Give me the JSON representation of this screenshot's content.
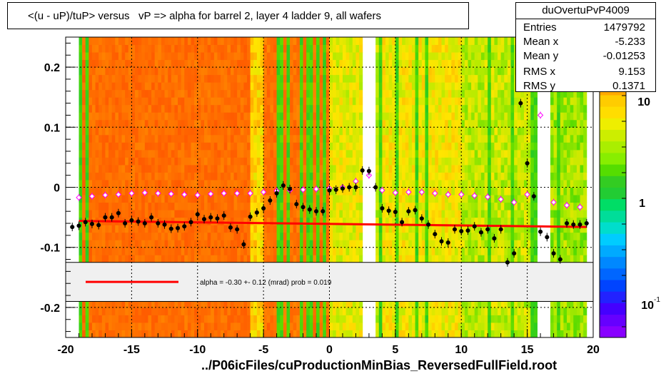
{
  "title": "<(u - uP)/tuP> versus   vP => alpha for barrel 2, layer 4 ladder 9, all wafers",
  "xlabel": "../P06icFiles/cuProductionMinBias_ReversedFullField.root",
  "stats": {
    "name": "duOvertuPvP4009",
    "rows": [
      {
        "k": "Entries",
        "v": "1479792"
      },
      {
        "k": "Mean x",
        "v": "-5.233"
      },
      {
        "k": "Mean y",
        "v": "-0.01253"
      },
      {
        "k": "RMS x",
        "v": "9.153"
      },
      {
        "k": "RMS y",
        "v": "0.1371"
      }
    ]
  },
  "fit_label": "alpha =   -0.30 +-  0.12 (mrad) prob = 0.019",
  "palette_labels": [
    "10",
    "1",
    "10"
  ],
  "palette_exponent": "-1",
  "colors": {
    "profile": "#000000",
    "mean_markers": "#ff00ff",
    "fit_line": "#ff0000"
  },
  "chart_data": {
    "type": "heatmap",
    "xlim": [
      -20,
      20
    ],
    "ylim": [
      -0.25,
      0.25
    ],
    "xticks": [
      -20,
      -15,
      -10,
      -5,
      0,
      5,
      10,
      15,
      20
    ],
    "yticks": [
      0.2,
      0.1,
      0,
      -0.1,
      -0.2
    ],
    "ytick_labels": [
      "0.2",
      "0.1",
      "0",
      "-0.1",
      "-0.2"
    ],
    "grid": true,
    "fit_line": {
      "x": [
        -19,
        19.5
      ],
      "y": [
        -0.056,
        -0.066
      ]
    },
    "profile_points": {
      "x": [
        -19.5,
        -19,
        -18.5,
        -18,
        -17.5,
        -17,
        -16.5,
        -16,
        -15.5,
        -15,
        -14.5,
        -14,
        -13.5,
        -13,
        -12.5,
        -12,
        -11.5,
        -11,
        -10.5,
        -10,
        -9.5,
        -9,
        -8.5,
        -8,
        -7.5,
        -7,
        -6.5,
        -6,
        -5.5,
        -5,
        -4.5,
        -4,
        -3.5,
        -3,
        -2.5,
        -2,
        -1.5,
        -1,
        -0.5,
        0,
        0.5,
        1,
        1.5,
        2,
        2.5,
        3,
        3.5,
        4,
        4.5,
        5,
        5.5,
        6,
        6.5,
        7,
        7.5,
        8,
        8.5,
        9,
        9.5,
        10,
        10.5,
        11,
        11.5,
        12,
        12.5,
        13,
        13.5,
        14,
        14.5,
        15,
        15.5,
        16,
        16.5,
        17,
        17.5,
        18,
        18.5,
        19,
        19.5
      ],
      "y": [
        -0.066,
        -0.064,
        -0.058,
        -0.061,
        -0.063,
        -0.05,
        -0.05,
        -0.043,
        -0.06,
        -0.055,
        -0.057,
        -0.06,
        -0.05,
        -0.06,
        -0.062,
        -0.069,
        -0.068,
        -0.065,
        -0.058,
        -0.045,
        -0.053,
        -0.05,
        -0.052,
        -0.047,
        -0.067,
        -0.07,
        -0.095,
        -0.049,
        -0.042,
        -0.035,
        -0.022,
        -0.01,
        0.003,
        -0.003,
        -0.028,
        -0.033,
        -0.037,
        -0.04,
        -0.04,
        -0.005,
        -0.004,
        -0.002,
        0.0,
        0.0,
        0.028,
        0.027,
        0.0,
        -0.035,
        -0.039,
        -0.041,
        -0.058,
        -0.04,
        -0.038,
        -0.052,
        -0.062,
        -0.078,
        -0.09,
        -0.092,
        -0.07,
        -0.073,
        -0.072,
        -0.065,
        -0.075,
        -0.07,
        -0.085,
        -0.07,
        -0.125,
        -0.11,
        0.14,
        0.04,
        -0.015,
        -0.074,
        -0.083,
        -0.11,
        -0.12,
        -0.06,
        -0.062,
        -0.062,
        -0.06
      ]
    },
    "mean_points": {
      "x": [
        -19,
        -18,
        -17,
        -16,
        -15,
        -14,
        -13,
        -12,
        -11,
        -10,
        -9,
        -8,
        -7,
        -6,
        -5,
        -4,
        -3,
        -2,
        -1,
        0,
        1,
        2,
        3,
        4,
        5,
        6,
        7,
        8,
        9,
        10,
        11,
        12,
        13,
        14,
        15,
        16,
        17,
        18,
        19
      ],
      "y": [
        -0.017,
        -0.015,
        -0.013,
        -0.012,
        -0.01,
        -0.009,
        -0.01,
        -0.011,
        -0.012,
        -0.013,
        -0.011,
        -0.01,
        -0.01,
        -0.01,
        -0.008,
        -0.006,
        -0.005,
        -0.004,
        -0.003,
        -0.002,
        0.0,
        0.01,
        0.02,
        -0.005,
        -0.009,
        -0.008,
        -0.008,
        -0.01,
        -0.012,
        -0.012,
        -0.014,
        -0.016,
        -0.02,
        -0.025,
        -0.012,
        0.12,
        -0.025,
        -0.03,
        -0.033
      ]
    }
  }
}
